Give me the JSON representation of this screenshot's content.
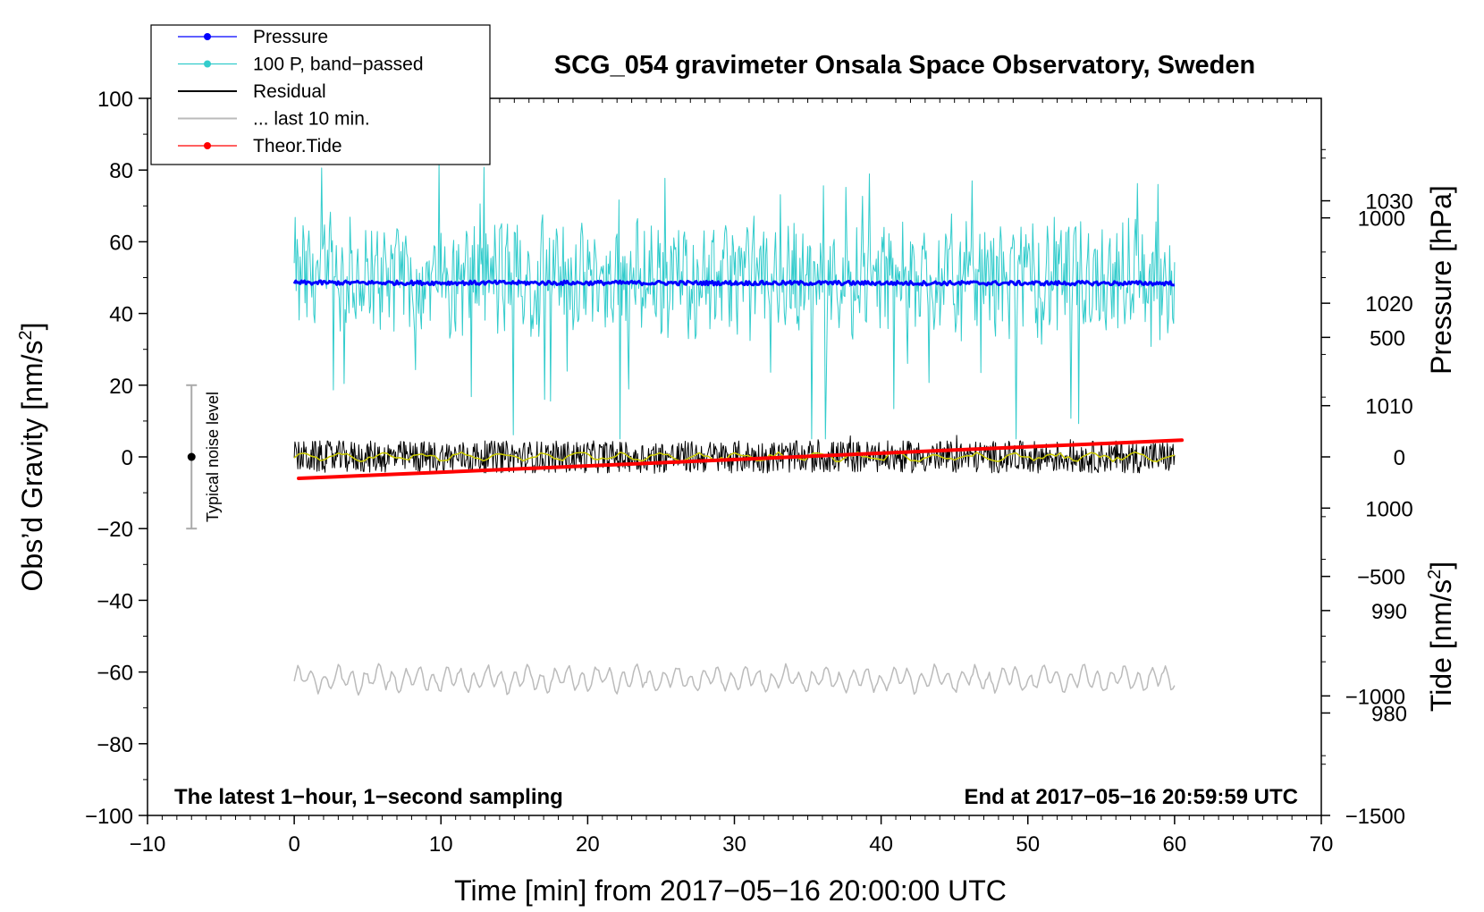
{
  "chart_data": {
    "type": "line",
    "title": "SCG_054 gravimeter Onsala Space Observatory, Sweden",
    "xlabel": "Time [min] from 2017−05−16 20:00:00 UTC",
    "ylabel_main": "Obs’d Gravity [nm/s",
    "ylabel_pressure": "Pressure [hPa]",
    "ylabel_tide": "Tide [nm/s",
    "superscript": "2",
    "ylabel_suffix": "]",
    "xlim": [
      -10,
      70
    ],
    "ylim": [
      -100,
      100
    ],
    "pressure_ylim": [
      970,
      1040
    ],
    "tide_ylim": [
      -1500,
      1500
    ],
    "x_ticks": [
      "−10",
      "0",
      "10",
      "20",
      "30",
      "40",
      "50",
      "60",
      "70"
    ],
    "y_ticks": [
      "100",
      "80",
      "60",
      "40",
      "20",
      "0",
      "−20",
      "−40",
      "−60",
      "−80",
      "−100"
    ],
    "pressure_ticks": [
      "1030",
      "1020",
      "1010",
      "1000",
      "990",
      "980"
    ],
    "tide_ticks": [
      "1000",
      "500",
      "0",
      "−500",
      "−1000",
      "−1500"
    ],
    "legend": {
      "position": "top-left",
      "entries": [
        "Pressure",
        "100 P, band−passed",
        "Residual",
        "... last 10 min.",
        "Theor.Tide"
      ]
    },
    "annotations": {
      "noise_label": "Typical noise level",
      "noise_range": [
        -20,
        20
      ],
      "bottom_left": "The latest 1−hour, 1−second sampling",
      "bottom_right": "End at 2017−05−16 20:59:59 UTC"
    },
    "series": [
      {
        "name": "Pressure",
        "axis": "pressure",
        "color": "#0000ff",
        "x_range": [
          0,
          60
        ],
        "approx_value_hPa": 1022
      },
      {
        "name": "100 P, band−passed",
        "axis": "gravity",
        "color": "#33cccc",
        "x_range": [
          0,
          60
        ],
        "approx_center": 50,
        "approx_range": [
          5,
          82
        ]
      },
      {
        "name": "Residual",
        "axis": "gravity",
        "color": "#000000",
        "x_range": [
          0,
          60
        ],
        "approx_center": 0,
        "approx_range": [
          -10,
          6
        ]
      },
      {
        "name": "Residual smoothed",
        "axis": "gravity",
        "color": "#cccc00",
        "x_range": [
          0,
          60
        ],
        "approx_center": 0
      },
      {
        "name": "... last 10 min.",
        "axis": "gravity",
        "color": "#bbbbbb",
        "x_range": [
          0,
          60
        ],
        "approx_center": -62,
        "approx_range": [
          -67,
          -56
        ]
      },
      {
        "name": "Theor.Tide",
        "axis": "tide",
        "color": "#ff0000",
        "x_start": 0.3,
        "x_end": 60.5,
        "tide_start": -90,
        "tide_end": 70
      }
    ]
  }
}
